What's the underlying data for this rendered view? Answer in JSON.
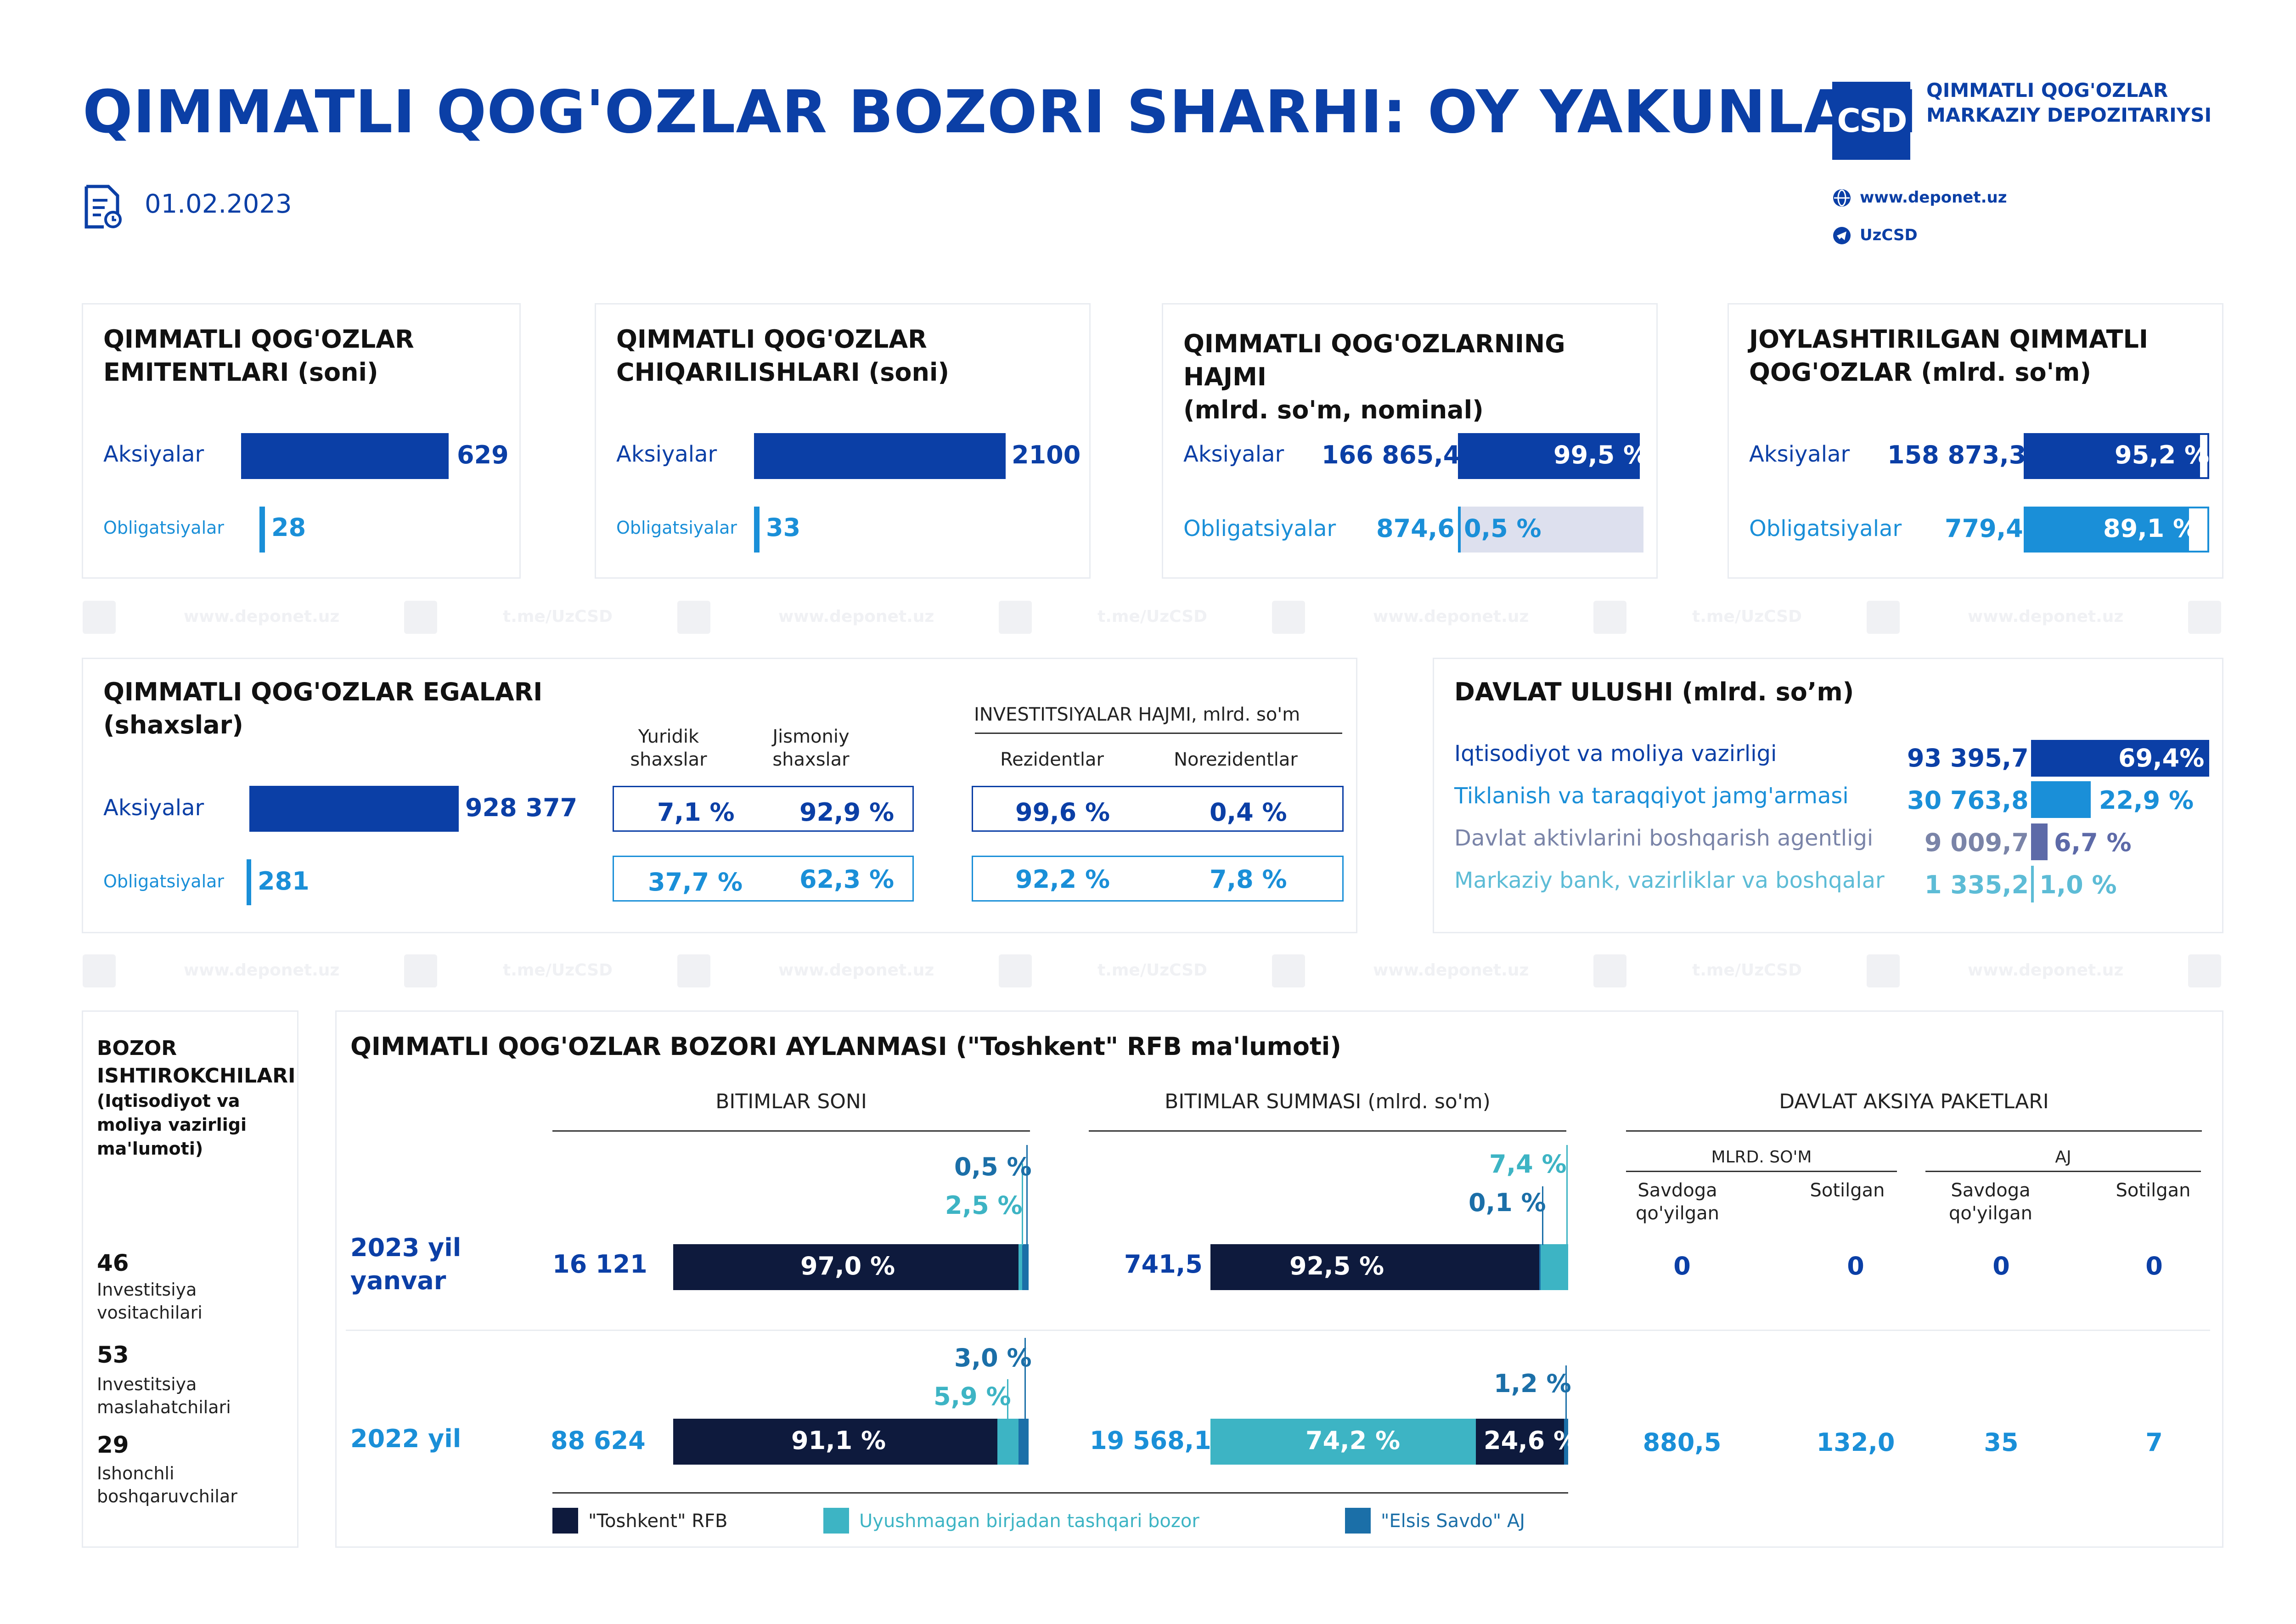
{
  "header": {
    "title": "QIMMATLI QOG'OZLAR BOZORI SHARHI: OY YAKUNLARI",
    "date": "01.02.2023",
    "org_line1": "QIMMATLI QOG'OZLAR",
    "org_line2": "MARKAZIY DEPOZITARIYSI",
    "website": "www.deponet.uz",
    "telegram": "UzCSD",
    "logo_text": "CSD"
  },
  "watermark": {
    "site": "www.deponet.uz",
    "tg": "t.me/UzCSD"
  },
  "cards": {
    "issuers": {
      "title1": "QIMMATLI QOG'OZLAR",
      "title2": "EMITENTLARI (soni)",
      "row1_label": "Aksiyalar",
      "row1_value": "629",
      "row2_label": "Obligatsiyalar",
      "row2_value": "28"
    },
    "issues": {
      "title1": "QIMMATLI QOG'OZLAR",
      "title2": "CHIQARILISHLARI (soni)",
      "row1_label": "Aksiyalar",
      "row1_value": "2100",
      "row2_label": "Obligatsiyalar",
      "row2_value": "33"
    },
    "volume": {
      "title1": "QIMMATLI QOG'OZLARNING HAJMI",
      "title2": "(mlrd. so'm, nominal)",
      "row1_label": "Aksiyalar",
      "row1_value": "166 865,4",
      "row1_pct": "99,5 %",
      "row2_label": "Obligatsiyalar",
      "row2_value": "874,6",
      "row2_pct": "0,5 %"
    },
    "placed": {
      "title1": "JOYLASHTIRILGAN QIMMATLI",
      "title2": "QOG'OZLAR (mlrd. so'm)",
      "row1_label": "Aksiyalar",
      "row1_value": "158 873,3",
      "row1_pct": "95,2 %",
      "row2_label": "Obligatsiyalar",
      "row2_value": "779,4",
      "row2_pct": "89,1 %"
    }
  },
  "owners": {
    "title1": "QIMMATLI QOG'OZLAR EGALARI",
    "title2": "(shaxslar)",
    "col_legal": "Yuridik\nshaxslar",
    "col_legal_1": "Yuridik",
    "col_legal_2": "shaxslar",
    "col_phys_1": "Jismoniy",
    "col_phys_2": "shaxslar",
    "inv_header": "INVESTITSIYALAR HAJMI, mlrd. so'm",
    "col_res": "Rezidentlar",
    "col_nonres": "Norezidentlar",
    "row1_label": "Aksiyalar",
    "row1_value": "928 377",
    "row1_legal": "7,1 %",
    "row1_phys": "92,9 %",
    "row1_res": "99,6 %",
    "row1_nonres": "0,4 %",
    "row2_label": "Obligatsiyalar",
    "row2_value": "281",
    "row2_legal": "37,7 %",
    "row2_phys": "62,3 %",
    "row2_res": "92,2 %",
    "row2_nonres": "7,8 %"
  },
  "state_share": {
    "title": "DAVLAT ULUSHI (mlrd. so’m)",
    "rows": [
      {
        "label": "Iqtisodiyot va moliya vazirligi",
        "value": "93 395,7",
        "pct": "69,4%",
        "share": 0.694
      },
      {
        "label": "Tiklanish va taraqqiyot jamg'armasi",
        "value": "30 763,8",
        "pct": "22,9 %",
        "share": 0.229
      },
      {
        "label": "Davlat aktivlarini boshqarish agentligi",
        "value": "9 009,7",
        "pct": "6,7 %",
        "share": 0.067
      },
      {
        "label": "Markaziy bank, vazirliklar va boshqalar",
        "value": "1 335,2",
        "pct": "1,0 %",
        "share": 0.01
      }
    ]
  },
  "participants": {
    "title1": "BOZOR",
    "title2": "ISHTIROKCHILARI",
    "sub1": "(Iqtisodiyot va",
    "sub2": "moliya vazirligi",
    "sub3": "ma'lumoti)",
    "items": [
      {
        "n": "46",
        "l1": "Investitsiya",
        "l2": "vositachilari"
      },
      {
        "n": "53",
        "l1": "Investitsiya",
        "l2": "maslahatchilari"
      },
      {
        "n": "29",
        "l1": "Ishonchli",
        "l2": "boshqaruvchilar"
      }
    ]
  },
  "turnover": {
    "title": "QIMMATLI QOG'OZLAR BOZORI AYLANMASI (\"Toshkent\" RFB ma'lumoti)",
    "sec_count": "BITIMLAR SONI",
    "sec_sum": "BITIMLAR SUMMASI (mlrd. so'm)",
    "sec_state": "DAVLAT AKSIYA PAKETLARI",
    "sub_mlrd": "MLRD. SO'M",
    "sub_aj": "AJ",
    "col_offered_1": "Savdoga",
    "col_offered_2": "qo'yilgan",
    "col_sold": "Sotilgan",
    "rows": [
      {
        "period1": "2023 yil",
        "period2": "yanvar",
        "count": "16 121",
        "count_main": "97,0 %",
        "count_otc": "2,5 %",
        "count_elsis": "0,5 %",
        "sum": "741,5",
        "sum_main": "92,5 %",
        "sum_otc": "7,4 %",
        "sum_elsis": "0,1 %",
        "st_mlrd_offered": "0",
        "st_mlrd_sold": "0",
        "st_aj_offered": "0",
        "st_aj_sold": "0"
      },
      {
        "period1": "2022 yil",
        "period2": "",
        "count": "88 624",
        "count_main": "91,1 %",
        "count_otc": "5,9 %",
        "count_elsis": "3,0 %",
        "sum": "19 568,1",
        "sum_main": "24,6 %",
        "sum_otc": "74,2 %",
        "sum_elsis": "1,2 %",
        "st_mlrd_offered": "880,5",
        "st_mlrd_sold": "132,0",
        "st_aj_offered": "35",
        "st_aj_sold": "7"
      }
    ],
    "legend": {
      "main": "\"Toshkent\" RFB",
      "otc": "Uyushmagan birjadan tashqari bozor",
      "elsis": "\"Elsis Savdo\" AJ"
    }
  },
  "colors": {
    "brand_blue": "#0b3fa6",
    "light_blue": "#1a8fd8",
    "navy": "#0e1a3d",
    "turquoise": "#3db4c4",
    "mid_blue": "#1b6fa8",
    "pale": "#dde0ee"
  },
  "icons": [
    "document-date-icon",
    "globe-icon",
    "telegram-icon",
    "csd-logo"
  ]
}
